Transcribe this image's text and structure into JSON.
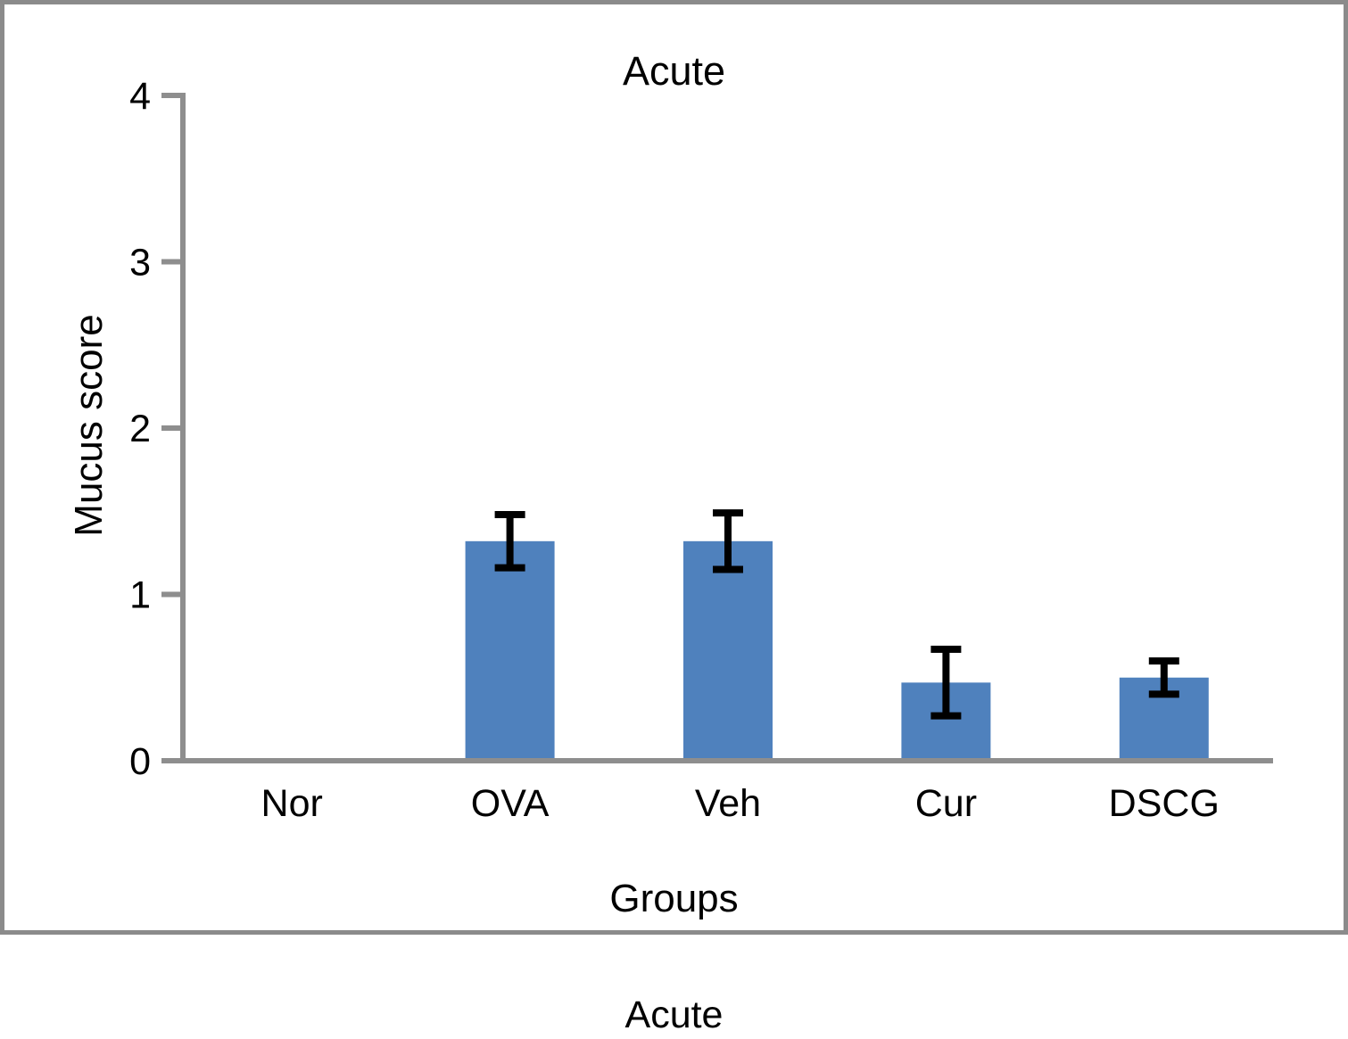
{
  "figure": {
    "caption": "Acute"
  },
  "chart_data": {
    "type": "bar",
    "title": "Acute",
    "xlabel": "Groups",
    "ylabel": "Mucus score",
    "categories": [
      "Nor",
      "OVA",
      "Veh",
      "Cur",
      "DSCG"
    ],
    "values": [
      0,
      1.32,
      1.32,
      0.47,
      0.5
    ],
    "errors": [
      0,
      0.16,
      0.17,
      0.2,
      0.1
    ],
    "ylim": [
      0,
      4
    ],
    "yticks": [
      0,
      1,
      2,
      3,
      4
    ],
    "grid": false,
    "legend": "none",
    "bar_color": "#4f81bd",
    "axis_color": "#8e8e8e",
    "error_color": "#000000",
    "frame_color": "#8b8b8b"
  }
}
